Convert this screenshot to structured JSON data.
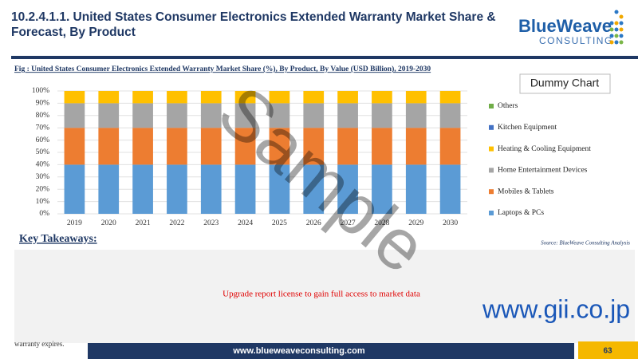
{
  "header": {
    "title": "10.2.4.1.1. United States Consumer  Electronics Extended Warranty Market Share & Forecast, By Product",
    "logo_main": "BlueWeave",
    "logo_sub": "CONSULTING"
  },
  "chart_data": {
    "type": "stacked_bar",
    "title": "Fig : United States Consumer  Electronics Extended Warranty Market Share (%), By Product, By Value (USD Billion), 2019-2030",
    "legend_title": "Dummy Chart",
    "categories": [
      "2019",
      "2020",
      "2021",
      "2022",
      "2023",
      "2024",
      "2025",
      "2026",
      "2027",
      "2028",
      "2029",
      "2030"
    ],
    "series": [
      {
        "name": "Laptops & PCs",
        "color": "#5b9bd5",
        "values": [
          40,
          40,
          40,
          40,
          40,
          40,
          40,
          40,
          40,
          40,
          40,
          40
        ]
      },
      {
        "name": "Mobiles & Tablets",
        "color": "#ed7d31",
        "values": [
          30,
          30,
          30,
          30,
          30,
          30,
          30,
          30,
          30,
          30,
          30,
          30
        ]
      },
      {
        "name": "Home Entertainment Devices",
        "color": "#a5a5a5",
        "values": [
          20,
          20,
          20,
          20,
          20,
          20,
          20,
          20,
          20,
          20,
          20,
          20
        ]
      },
      {
        "name": "Heating & Cooling Equipment",
        "color": "#ffc000",
        "values": [
          10,
          10,
          10,
          10,
          10,
          10,
          10,
          10,
          10,
          10,
          10,
          10
        ]
      },
      {
        "name": "Kitchen Equipment",
        "color": "#4472c4",
        "values": [
          0,
          0,
          0,
          0,
          0,
          0,
          0,
          0,
          0,
          0,
          0,
          0
        ]
      },
      {
        "name": "Others",
        "color": "#70ad47",
        "values": [
          0,
          0,
          0,
          0,
          0,
          0,
          0,
          0,
          0,
          0,
          0,
          0
        ]
      }
    ],
    "ylim": [
      0,
      100
    ],
    "yticks": [
      {
        "value": 0,
        "label": "0%"
      },
      {
        "value": 10,
        "label": "10%"
      },
      {
        "value": 20,
        "label": "20%"
      },
      {
        "value": 30,
        "label": "30%"
      },
      {
        "value": 40,
        "label": "40%"
      },
      {
        "value": 50,
        "label": "50%"
      },
      {
        "value": 60,
        "label": "60%"
      },
      {
        "value": 70,
        "label": "70%"
      },
      {
        "value": 80,
        "label": "80%"
      },
      {
        "value": 90,
        "label": "90%"
      },
      {
        "value": 100,
        "label": "100%"
      }
    ],
    "source": "Source: BlueWeave Consulting Analysis"
  },
  "takeaways": {
    "title": "Key Takeaways:",
    "notice": "Upgrade report license to gain full access to market data",
    "fragment": "warranty expires."
  },
  "watermark": {
    "sample": "Sample",
    "site": "www.gii.co.jp"
  },
  "footer": {
    "url": "www.blueweaveconsulting.com",
    "page": "63"
  }
}
